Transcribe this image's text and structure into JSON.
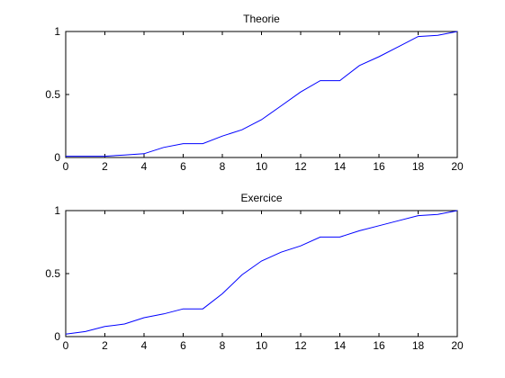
{
  "chart_data": [
    {
      "type": "line",
      "title": "Theorie",
      "xlabel": "",
      "ylabel": "",
      "xlim": [
        0,
        20
      ],
      "ylim": [
        0,
        1
      ],
      "xticks": [
        0,
        2,
        4,
        6,
        8,
        10,
        12,
        14,
        16,
        18,
        20
      ],
      "xtick_labels": [
        "0",
        "2",
        "4",
        "6",
        "8",
        "10",
        "12",
        "14",
        "16",
        "18",
        "20"
      ],
      "yticks": [
        0,
        0.5,
        1
      ],
      "ytick_labels": [
        "0",
        "0.5",
        "1"
      ],
      "grid": false,
      "series": [
        {
          "color": "#0000ff",
          "x": [
            0,
            1,
            2,
            3,
            4,
            5,
            6,
            7,
            8,
            9,
            10,
            11,
            12,
            13,
            14,
            15,
            16,
            17,
            18,
            19,
            20
          ],
          "y": [
            0.01,
            0.01,
            0.01,
            0.02,
            0.03,
            0.08,
            0.11,
            0.11,
            0.17,
            0.22,
            0.3,
            0.41,
            0.52,
            0.61,
            0.61,
            0.73,
            0.8,
            0.88,
            0.96,
            0.97,
            1.0
          ]
        }
      ]
    },
    {
      "type": "line",
      "title": "Exercice",
      "xlabel": "",
      "ylabel": "",
      "xlim": [
        0,
        20
      ],
      "ylim": [
        0,
        1
      ],
      "xticks": [
        0,
        2,
        4,
        6,
        8,
        10,
        12,
        14,
        16,
        18,
        20
      ],
      "xtick_labels": [
        "0",
        "2",
        "4",
        "6",
        "8",
        "10",
        "12",
        "14",
        "16",
        "18",
        "20"
      ],
      "yticks": [
        0,
        0.5,
        1
      ],
      "ytick_labels": [
        "0",
        "0.5",
        "1"
      ],
      "grid": false,
      "series": [
        {
          "color": "#0000ff",
          "x": [
            0,
            1,
            2,
            3,
            4,
            5,
            6,
            7,
            8,
            9,
            10,
            11,
            12,
            13,
            14,
            15,
            16,
            17,
            18,
            19,
            20
          ],
          "y": [
            0.02,
            0.04,
            0.08,
            0.1,
            0.15,
            0.18,
            0.22,
            0.22,
            0.34,
            0.49,
            0.6,
            0.67,
            0.72,
            0.79,
            0.79,
            0.84,
            0.88,
            0.92,
            0.96,
            0.97,
            1.0
          ]
        }
      ]
    }
  ]
}
